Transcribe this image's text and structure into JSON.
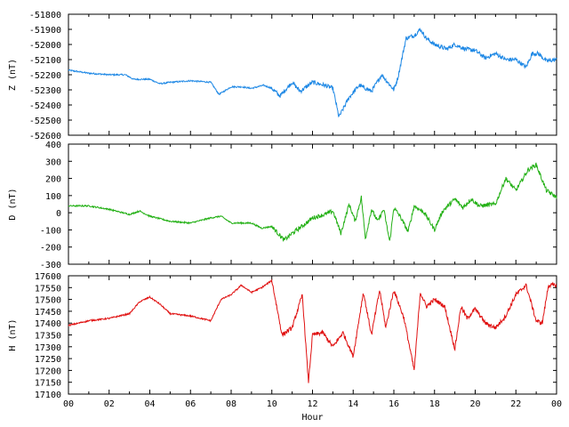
{
  "chart_data": [
    {
      "type": "line",
      "ylabel": "Z (nT)",
      "color": "#1e88e5",
      "ylim": [
        -52600,
        -51800
      ],
      "yticks": [
        "-51800",
        "-51900",
        "-52000",
        "-52100",
        "-52200",
        "-52300",
        "-52400",
        "-52500",
        "-52600"
      ],
      "grid": false,
      "x": [
        0,
        1,
        2,
        2.8,
        3.2,
        4,
        4.5,
        5,
        6,
        7,
        7.4,
        8,
        8.5,
        9,
        9.6,
        10,
        10.4,
        11,
        11.4,
        12,
        12.6,
        13,
        13.3,
        13.8,
        14.3,
        14.9,
        15.4,
        16,
        16.2,
        16.6,
        17,
        17.3,
        17.6,
        18,
        18.6,
        19,
        19.5,
        20,
        20.5,
        21,
        21.5,
        22,
        22.5,
        22.8,
        23.1,
        23.5,
        24
      ],
      "values": [
        -52170,
        -52190,
        -52200,
        -52200,
        -52230,
        -52230,
        -52260,
        -52250,
        -52240,
        -52250,
        -52330,
        -52280,
        -52280,
        -52290,
        -52270,
        -52290,
        -52340,
        -52250,
        -52310,
        -52250,
        -52270,
        -52290,
        -52480,
        -52350,
        -52270,
        -52310,
        -52200,
        -52300,
        -52220,
        -51960,
        -51940,
        -51900,
        -51960,
        -52000,
        -52030,
        -52000,
        -52030,
        -52040,
        -52090,
        -52060,
        -52100,
        -52100,
        -52150,
        -52060,
        -52060,
        -52110,
        -52100
      ]
    },
    {
      "type": "line",
      "ylabel": "D (nT)",
      "color": "#22b014",
      "ylim": [
        -300,
        400
      ],
      "yticks": [
        "400",
        "300",
        "200",
        "100",
        "0",
        "-100",
        "-200",
        "-300"
      ],
      "grid": false,
      "x": [
        0,
        1,
        2,
        3,
        3.5,
        4,
        5,
        6,
        7,
        7.5,
        8,
        9,
        9.5,
        10,
        10.6,
        11,
        11.7,
        12,
        12.6,
        13,
        13.4,
        13.8,
        14.1,
        14.4,
        14.6,
        14.9,
        15.2,
        15.5,
        15.8,
        16,
        16.3,
        16.7,
        17,
        17.5,
        18,
        18.4,
        19,
        19.4,
        19.8,
        20.2,
        21,
        21.5,
        22,
        22.6,
        23,
        23.5,
        24
      ],
      "values": [
        40,
        40,
        20,
        -10,
        10,
        -20,
        -50,
        -60,
        -30,
        -20,
        -60,
        -60,
        -90,
        -80,
        -160,
        -120,
        -60,
        -30,
        -10,
        10,
        -120,
        50,
        -50,
        90,
        -150,
        20,
        -50,
        20,
        -170,
        30,
        -20,
        -110,
        40,
        0,
        -100,
        10,
        80,
        30,
        80,
        40,
        50,
        200,
        130,
        250,
        280,
        130,
        90
      ]
    },
    {
      "type": "line",
      "ylabel": "H (nT)",
      "xlabel": "Hour",
      "color": "#e01010",
      "ylim": [
        17100,
        17600
      ],
      "yticks": [
        "17600",
        "17550",
        "17500",
        "17450",
        "17400",
        "17350",
        "17300",
        "17250",
        "17200",
        "17150",
        "17100"
      ],
      "xlim": [
        0,
        24
      ],
      "xticks": [
        "00",
        "02",
        "04",
        "06",
        "08",
        "10",
        "12",
        "14",
        "16",
        "18",
        "20",
        "22",
        "00"
      ],
      "grid": false,
      "x": [
        0,
        1,
        2,
        3,
        3.5,
        4,
        4.5,
        5,
        6,
        7,
        7.5,
        8,
        8.5,
        9,
        9.5,
        10,
        10.5,
        11,
        11.5,
        11.8,
        12,
        12.5,
        13,
        13.5,
        14,
        14.5,
        14.9,
        15.3,
        15.6,
        16,
        16.5,
        17,
        17.3,
        17.6,
        18,
        18.5,
        19,
        19.3,
        19.6,
        20,
        20.5,
        21,
        21.5,
        22,
        22.5,
        23,
        23.3,
        23.6,
        24
      ],
      "values": [
        17390,
        17410,
        17420,
        17440,
        17490,
        17510,
        17480,
        17440,
        17430,
        17410,
        17500,
        17520,
        17560,
        17530,
        17550,
        17580,
        17350,
        17380,
        17520,
        17150,
        17350,
        17360,
        17300,
        17360,
        17260,
        17530,
        17350,
        17540,
        17380,
        17540,
        17420,
        17200,
        17530,
        17470,
        17500,
        17470,
        17290,
        17470,
        17420,
        17460,
        17400,
        17380,
        17430,
        17520,
        17560,
        17410,
        17400,
        17560,
        17560
      ]
    }
  ]
}
